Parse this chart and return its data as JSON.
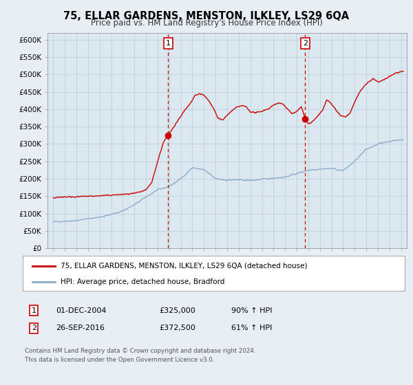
{
  "title": "75, ELLAR GARDENS, MENSTON, ILKLEY, LS29 6QA",
  "subtitle": "Price paid vs. HM Land Registry's House Price Index (HPI)",
  "xlim": [
    1994.5,
    2025.5
  ],
  "ylim": [
    0,
    620000
  ],
  "yticks": [
    0,
    50000,
    100000,
    150000,
    200000,
    250000,
    300000,
    350000,
    400000,
    450000,
    500000,
    550000,
    600000
  ],
  "ytick_labels": [
    "£0",
    "£50K",
    "£100K",
    "£150K",
    "£200K",
    "£250K",
    "£300K",
    "£350K",
    "£400K",
    "£450K",
    "£500K",
    "£550K",
    "£600K"
  ],
  "xticks": [
    1995,
    1996,
    1997,
    1998,
    1999,
    2000,
    2001,
    2002,
    2003,
    2004,
    2005,
    2006,
    2007,
    2008,
    2009,
    2010,
    2011,
    2012,
    2013,
    2014,
    2015,
    2016,
    2017,
    2018,
    2019,
    2020,
    2021,
    2022,
    2023,
    2024,
    2025
  ],
  "red_line_color": "#cc0000",
  "blue_line_color": "#88aacc",
  "point1_x": 2004.917,
  "point1_y": 325000,
  "point2_x": 2016.736,
  "point2_y": 372500,
  "vline1_x": 2004.917,
  "vline2_x": 2016.736,
  "vline_color": "#cc0000",
  "marker_color": "#cc0000",
  "legend_label_red": "75, ELLAR GARDENS, MENSTON, ILKLEY, LS29 6QA (detached house)",
  "legend_label_blue": "HPI: Average price, detached house, Bradford",
  "table_row1": [
    "1",
    "01-DEC-2004",
    "£325,000",
    "90% ↑ HPI"
  ],
  "table_row2": [
    "2",
    "26-SEP-2016",
    "£372,500",
    "61% ↑ HPI"
  ],
  "footnote1": "Contains HM Land Registry data © Crown copyright and database right 2024.",
  "footnote2": "This data is licensed under the Open Government Licence v3.0.",
  "bg_color": "#e8eef4",
  "plot_bg_color": "#dce8f0",
  "grid_color": "#b8ccd8"
}
